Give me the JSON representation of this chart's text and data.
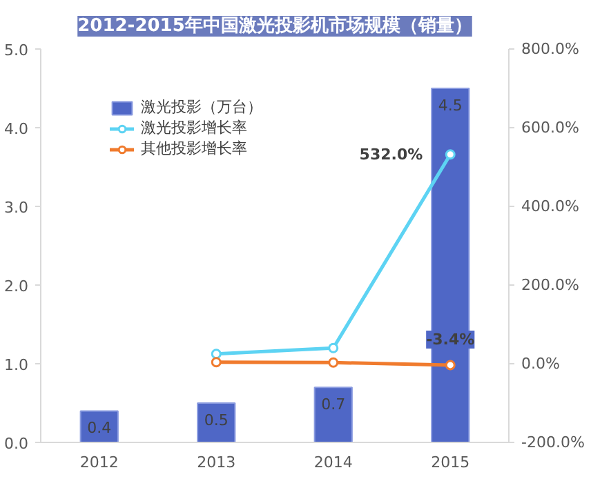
{
  "chart_data": {
    "type": "bar",
    "title": "2012-2015年中国激光投影机市场规模（销量）",
    "categories": [
      "2012",
      "2013",
      "2014",
      "2015"
    ],
    "series": [
      {
        "name": "激光投影（万台）",
        "color": "#4f67c6",
        "values": [
          0.4,
          0.5,
          0.7,
          4.5
        ],
        "data_labels": true
      },
      {
        "name": "激光投影增长率",
        "type": "line",
        "axis": "y2",
        "color": "#5dd3f3",
        "values": [
          null,
          25,
          40,
          532.0
        ],
        "value_labels": [
          null,
          null,
          null,
          "532.0%"
        ]
      },
      {
        "name": "其他投影增长率",
        "type": "line",
        "axis": "y2",
        "color": "#f07b2e",
        "values": [
          null,
          4,
          3,
          -3.4
        ],
        "value_labels": [
          null,
          null,
          null,
          "-3.4%"
        ]
      }
    ],
    "ylim": [
      0,
      5
    ],
    "yticks": [
      {
        "value": 0,
        "label": "0.0"
      },
      {
        "value": 1,
        "label": "1.0"
      },
      {
        "value": 2,
        "label": "2.0"
      },
      {
        "value": 3,
        "label": "3.0"
      },
      {
        "value": 4,
        "label": "4.0"
      },
      {
        "value": 5,
        "label": "5.0"
      }
    ],
    "y2lim": [
      -200,
      800
    ],
    "y2ticks": [
      {
        "value": -200,
        "label": "-200.0%"
      },
      {
        "value": 0,
        "label": "0.0%"
      },
      {
        "value": 200,
        "label": "200.0%"
      },
      {
        "value": 400,
        "label": "400.0%"
      },
      {
        "value": 600,
        "label": "600.0%"
      },
      {
        "value": 800,
        "label": "800.0%"
      }
    ],
    "grid": false,
    "legend": "top left",
    "marker": "circle",
    "line_style": "solid"
  }
}
